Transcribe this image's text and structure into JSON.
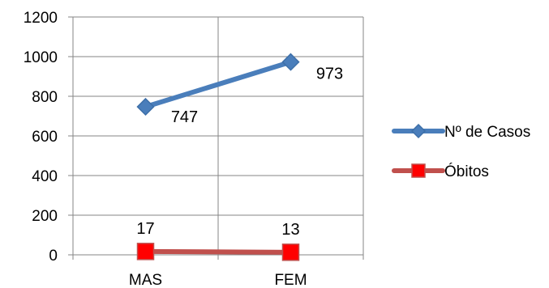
{
  "chart_data": {
    "type": "line",
    "categories": [
      "MAS",
      "FEM"
    ],
    "ylim": [
      0,
      1200
    ],
    "yticks": [
      0,
      200,
      400,
      600,
      800,
      1000,
      1200
    ],
    "grid": true,
    "legend_position": "right",
    "series": [
      {
        "name": "Nº de Casos",
        "values": [
          747,
          973
        ],
        "labels": [
          "747",
          "973"
        ],
        "color": "#4a7ebb",
        "marker": "diamond"
      },
      {
        "name": "Óbitos",
        "values": [
          17,
          13
        ],
        "labels": [
          "17",
          "13"
        ],
        "color": "#c0504d",
        "marker": "square",
        "marker_color": "#ff0000"
      }
    ]
  }
}
